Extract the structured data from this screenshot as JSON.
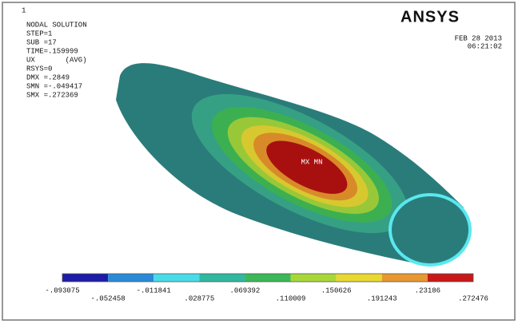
{
  "window_label": "1",
  "info": [
    "NODAL SOLUTION",
    "STEP=1",
    "SUB =17",
    "TIME=.159999",
    "UX       (AVG)",
    "RSYS=0",
    "DMX =.2849",
    "SMN =-.049417",
    "SMX =.272369"
  ],
  "logo": "ANSYS",
  "date": "FEB 28 2013",
  "time": "06:21:02",
  "plot_label": "MX MN",
  "legend": {
    "colors": [
      "#1c1ca8",
      "#2a8ad8",
      "#48dce8",
      "#30b8a0",
      "#3cb858",
      "#a8d838",
      "#e8d830",
      "#e89830",
      "#c81818"
    ],
    "labels": [
      "-.093075",
      "-.052458",
      "-.011841",
      ".028775",
      ".069392",
      ".110009",
      ".150626",
      ".191243",
      ".23186",
      ".272476"
    ]
  }
}
